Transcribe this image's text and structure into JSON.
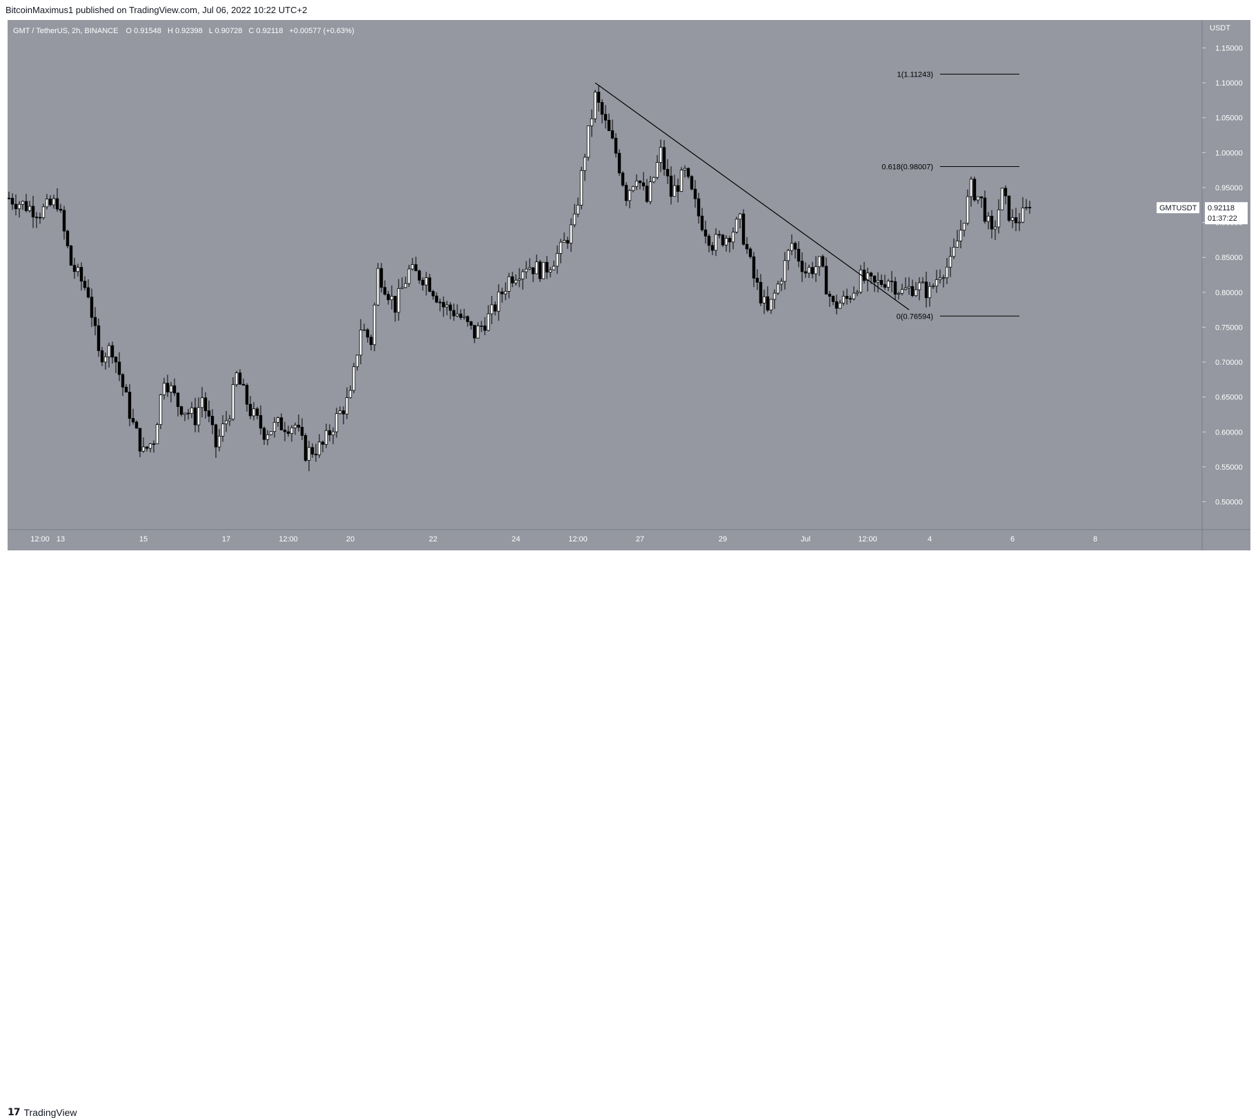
{
  "header": {
    "published_by": "BitcoinMaximus1 published on TradingView.com, Jul 06, 2022 10:22 UTC+2"
  },
  "legend": {
    "symbol": "GMT / TetherUS, 2h, BINANCE",
    "open_label": "O",
    "open": "0.91548",
    "high_label": "H",
    "high": "0.92398",
    "low_label": "L",
    "low": "0.90728",
    "close_label": "C",
    "close": "0.92118",
    "change": "+0.00577 (+0.63%)"
  },
  "price_scale": {
    "currency": "USDT",
    "last_symbol": "GMTUSDT",
    "last_price": "0.92118",
    "countdown": "01:37:22"
  },
  "footer": {
    "brand": "TradingView"
  },
  "colors": {
    "chart_background": "#9598a1",
    "candle_fill": "#000000",
    "line": "#000000",
    "label_background": "#ffffff"
  },
  "chart_data": {
    "type": "candlestick",
    "title": "GMT / TetherUS, 2h, BINANCE",
    "ylabel": "USDT",
    "ylim": [
      0.46,
      1.19
    ],
    "y_ticks": [
      "1.15000",
      "1.10000",
      "1.05000",
      "1.00000",
      "0.95000",
      "0.90000",
      "0.85000",
      "0.80000",
      "0.75000",
      "0.70000",
      "0.65000",
      "0.60000",
      "0.55000",
      "0.50000"
    ],
    "x_ticks": [
      {
        "label": "12:00",
        "t": 0
      },
      {
        "label": "13",
        "t": 6
      },
      {
        "label": "15",
        "t": 30
      },
      {
        "label": "17",
        "t": 54
      },
      {
        "label": "12:00",
        "t": 72
      },
      {
        "label": "20",
        "t": 90
      },
      {
        "label": "22",
        "t": 114
      },
      {
        "label": "24",
        "t": 138
      },
      {
        "label": "12:00",
        "t": 156
      },
      {
        "label": "27",
        "t": 174
      },
      {
        "label": "29",
        "t": 198
      },
      {
        "label": "Jul",
        "t": 222
      },
      {
        "label": "12:00",
        "t": 240
      },
      {
        "label": "4",
        "t": 258
      },
      {
        "label": "6",
        "t": 282
      },
      {
        "label": "8",
        "t": 306
      }
    ],
    "anchors": [
      {
        "t": -9,
        "p": 0.935
      },
      {
        "t": 0,
        "p": 0.915
      },
      {
        "t": 5,
        "p": 0.93
      },
      {
        "t": 9,
        "p": 0.84
      },
      {
        "t": 14,
        "p": 0.8
      },
      {
        "t": 17,
        "p": 0.71
      },
      {
        "t": 21,
        "p": 0.72
      },
      {
        "t": 27,
        "p": 0.61
      },
      {
        "t": 30,
        "p": 0.57
      },
      {
        "t": 33,
        "p": 0.59
      },
      {
        "t": 36,
        "p": 0.68
      },
      {
        "t": 40,
        "p": 0.64
      },
      {
        "t": 45,
        "p": 0.62
      },
      {
        "t": 47,
        "p": 0.65
      },
      {
        "t": 51,
        "p": 0.58
      },
      {
        "t": 55,
        "p": 0.63
      },
      {
        "t": 57,
        "p": 0.68
      },
      {
        "t": 61,
        "p": 0.63
      },
      {
        "t": 65,
        "p": 0.6
      },
      {
        "t": 69,
        "p": 0.61
      },
      {
        "t": 74,
        "p": 0.61
      },
      {
        "t": 77,
        "p": 0.57
      },
      {
        "t": 82,
        "p": 0.58
      },
      {
        "t": 86,
        "p": 0.62
      },
      {
        "t": 90,
        "p": 0.65
      },
      {
        "t": 93,
        "p": 0.75
      },
      {
        "t": 96,
        "p": 0.73
      },
      {
        "t": 98,
        "p": 0.83
      },
      {
        "t": 103,
        "p": 0.78
      },
      {
        "t": 107,
        "p": 0.83
      },
      {
        "t": 112,
        "p": 0.82
      },
      {
        "t": 117,
        "p": 0.78
      },
      {
        "t": 121,
        "p": 0.77
      },
      {
        "t": 126,
        "p": 0.74
      },
      {
        "t": 131,
        "p": 0.77
      },
      {
        "t": 136,
        "p": 0.82
      },
      {
        "t": 141,
        "p": 0.84
      },
      {
        "t": 146,
        "p": 0.83
      },
      {
        "t": 151,
        "p": 0.86
      },
      {
        "t": 155,
        "p": 0.9
      },
      {
        "t": 158,
        "p": 1.0
      },
      {
        "t": 161,
        "p": 1.08
      },
      {
        "t": 164,
        "p": 1.04
      },
      {
        "t": 167,
        "p": 1.0
      },
      {
        "t": 170,
        "p": 0.94
      },
      {
        "t": 173,
        "p": 0.97
      },
      {
        "t": 176,
        "p": 0.93
      },
      {
        "t": 180,
        "p": 1.0
      },
      {
        "t": 183,
        "p": 0.94
      },
      {
        "t": 187,
        "p": 0.97
      },
      {
        "t": 191,
        "p": 0.91
      },
      {
        "t": 195,
        "p": 0.87
      },
      {
        "t": 199,
        "p": 0.88
      },
      {
        "t": 203,
        "p": 0.9
      },
      {
        "t": 207,
        "p": 0.82
      },
      {
        "t": 211,
        "p": 0.77
      },
      {
        "t": 214,
        "p": 0.81
      },
      {
        "t": 218,
        "p": 0.87
      },
      {
        "t": 222,
        "p": 0.83
      },
      {
        "t": 226,
        "p": 0.84
      },
      {
        "t": 230,
        "p": 0.78
      },
      {
        "t": 234,
        "p": 0.79
      },
      {
        "t": 238,
        "p": 0.82
      },
      {
        "t": 242,
        "p": 0.81
      },
      {
        "t": 246,
        "p": 0.82
      },
      {
        "t": 250,
        "p": 0.8
      },
      {
        "t": 254,
        "p": 0.81
      },
      {
        "t": 258,
        "p": 0.8
      },
      {
        "t": 261,
        "p": 0.83
      },
      {
        "t": 264,
        "p": 0.84
      },
      {
        "t": 267,
        "p": 0.89
      },
      {
        "t": 270,
        "p": 0.95
      },
      {
        "t": 273,
        "p": 0.93
      },
      {
        "t": 276,
        "p": 0.88
      },
      {
        "t": 279,
        "p": 0.94
      },
      {
        "t": 282,
        "p": 0.9
      },
      {
        "t": 285,
        "p": 0.91
      },
      {
        "t": 287,
        "p": 0.921
      }
    ],
    "last_close": 0.92118,
    "trendline": [
      {
        "t": 161,
        "p": 1.1
      },
      {
        "t": 252,
        "p": 0.775
      }
    ],
    "fib_levels": [
      {
        "label": "1(1.11243)",
        "value": 1.11243,
        "t_start": 261,
        "t_end": 284
      },
      {
        "label": "0.618(0.98007)",
        "value": 0.98007,
        "t_start": 261,
        "t_end": 284
      },
      {
        "label": "0(0.76594)",
        "value": 0.76594,
        "t_start": 261,
        "t_end": 284
      }
    ]
  }
}
